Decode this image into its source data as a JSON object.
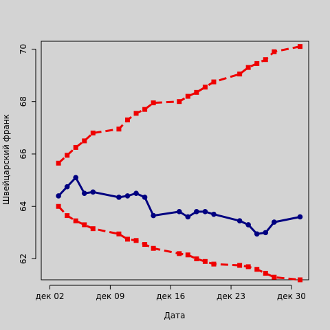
{
  "chart_data": {
    "type": "line",
    "title": "",
    "xlabel": "Дата",
    "ylabel": "Швейцарский франк",
    "x_tick_labels": [
      "дек 02",
      "дек 09",
      "дек 16",
      "дек 23",
      "дек 30"
    ],
    "x_ticks": [
      "2013-12-02",
      "2013-12-09",
      "2013-12-16",
      "2013-12-23",
      "2013-12-30"
    ],
    "y_ticks": [
      62,
      64,
      66,
      68,
      70
    ],
    "xlim": [
      "2013-12-01",
      "2014-01-01"
    ],
    "ylim": [
      61.2,
      70.3
    ],
    "grid": false,
    "x": [
      "2013-12-03",
      "2013-12-04",
      "2013-12-05",
      "2013-12-06",
      "2013-12-07",
      "2013-12-10",
      "2013-12-11",
      "2013-12-12",
      "2013-12-13",
      "2013-12-14",
      "2013-12-17",
      "2013-12-18",
      "2013-12-19",
      "2013-12-20",
      "2013-12-21",
      "2013-12-24",
      "2013-12-25",
      "2013-12-26",
      "2013-12-27",
      "2013-12-28",
      "2013-12-31"
    ],
    "series": [
      {
        "color": "#000080",
        "style": "solid",
        "marker": "circle",
        "values": [
          64.4,
          64.75,
          65.1,
          64.5,
          64.55,
          64.35,
          64.4,
          64.5,
          64.35,
          63.65,
          63.8,
          63.6,
          63.8,
          63.8,
          63.7,
          63.45,
          63.3,
          62.95,
          63.0,
          63.4,
          63.6
        ]
      },
      {
        "color": "#ee0000",
        "style": "dashed",
        "marker": "square",
        "values": [
          65.65,
          65.95,
          66.25,
          66.5,
          66.8,
          66.95,
          67.3,
          67.55,
          67.7,
          67.95,
          68.0,
          68.2,
          68.35,
          68.55,
          68.75,
          69.05,
          69.3,
          69.45,
          69.6,
          69.9,
          70.1
        ]
      },
      {
        "color": "#ee0000",
        "style": "dashed",
        "marker": "square",
        "values": [
          64.0,
          63.65,
          63.45,
          63.3,
          63.15,
          62.95,
          62.75,
          62.7,
          62.55,
          62.4,
          62.2,
          62.15,
          62.0,
          61.9,
          61.8,
          61.75,
          61.7,
          61.6,
          61.45,
          61.3,
          61.2
        ]
      }
    ]
  }
}
